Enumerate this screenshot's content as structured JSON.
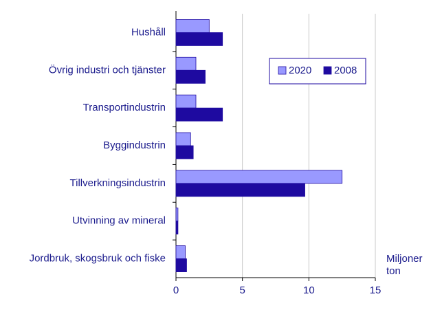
{
  "chart_data": {
    "type": "hbar",
    "categories": [
      "Hushåll",
      "Övrig industri och tjänster",
      "Transportindustrin",
      "Byggindustrin",
      "Tillverkningsindustrin",
      "Utvinning av mineral",
      "Jordbruk, skogsbruk och fiske"
    ],
    "series": [
      {
        "name": "2020",
        "color": "#9999ff",
        "values": [
          2.5,
          1.5,
          1.5,
          1.1,
          12.5,
          0.15,
          0.7
        ]
      },
      {
        "name": "2008",
        "color": "#1e0aa0",
        "values": [
          3.5,
          2.2,
          3.5,
          1.3,
          9.7,
          0.15,
          0.8
        ]
      }
    ],
    "xlabel": "Miljoner ton",
    "xlim": [
      0,
      15
    ],
    "xticks": [
      0,
      5,
      10,
      15
    ],
    "grid": true
  }
}
